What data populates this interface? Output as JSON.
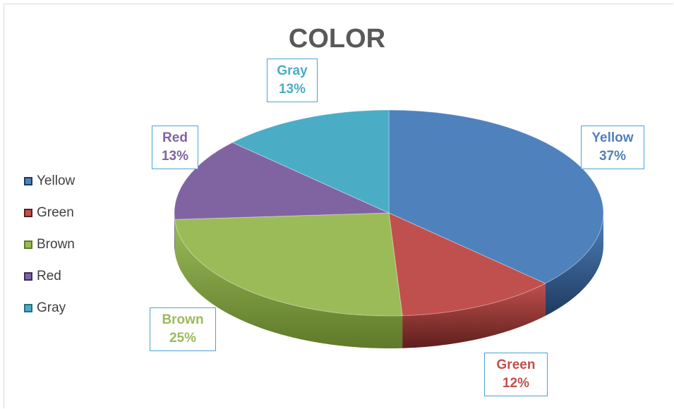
{
  "chart_data": {
    "type": "pie",
    "title": "COLOR",
    "categories": [
      "Yellow",
      "Green",
      "Brown",
      "Red",
      "Gray"
    ],
    "values": [
      37,
      12,
      25,
      13,
      13
    ],
    "labels": [
      {
        "name": "Yellow",
        "percent": "37%"
      },
      {
        "name": "Green",
        "percent": "12%"
      },
      {
        "name": "Brown",
        "percent": "25%"
      },
      {
        "name": "Red",
        "percent": "13%"
      },
      {
        "name": "Gray",
        "percent": "13%"
      }
    ],
    "colors": [
      "#4f81bd",
      "#c0504d",
      "#9bbb59",
      "#8064a2",
      "#4bacc6"
    ],
    "side_colors": [
      "#1f3a5f",
      "#5e1f1d",
      "#5f7a2a",
      "#3f2f5a",
      "#2a6f80"
    ],
    "legend_position": "left"
  }
}
